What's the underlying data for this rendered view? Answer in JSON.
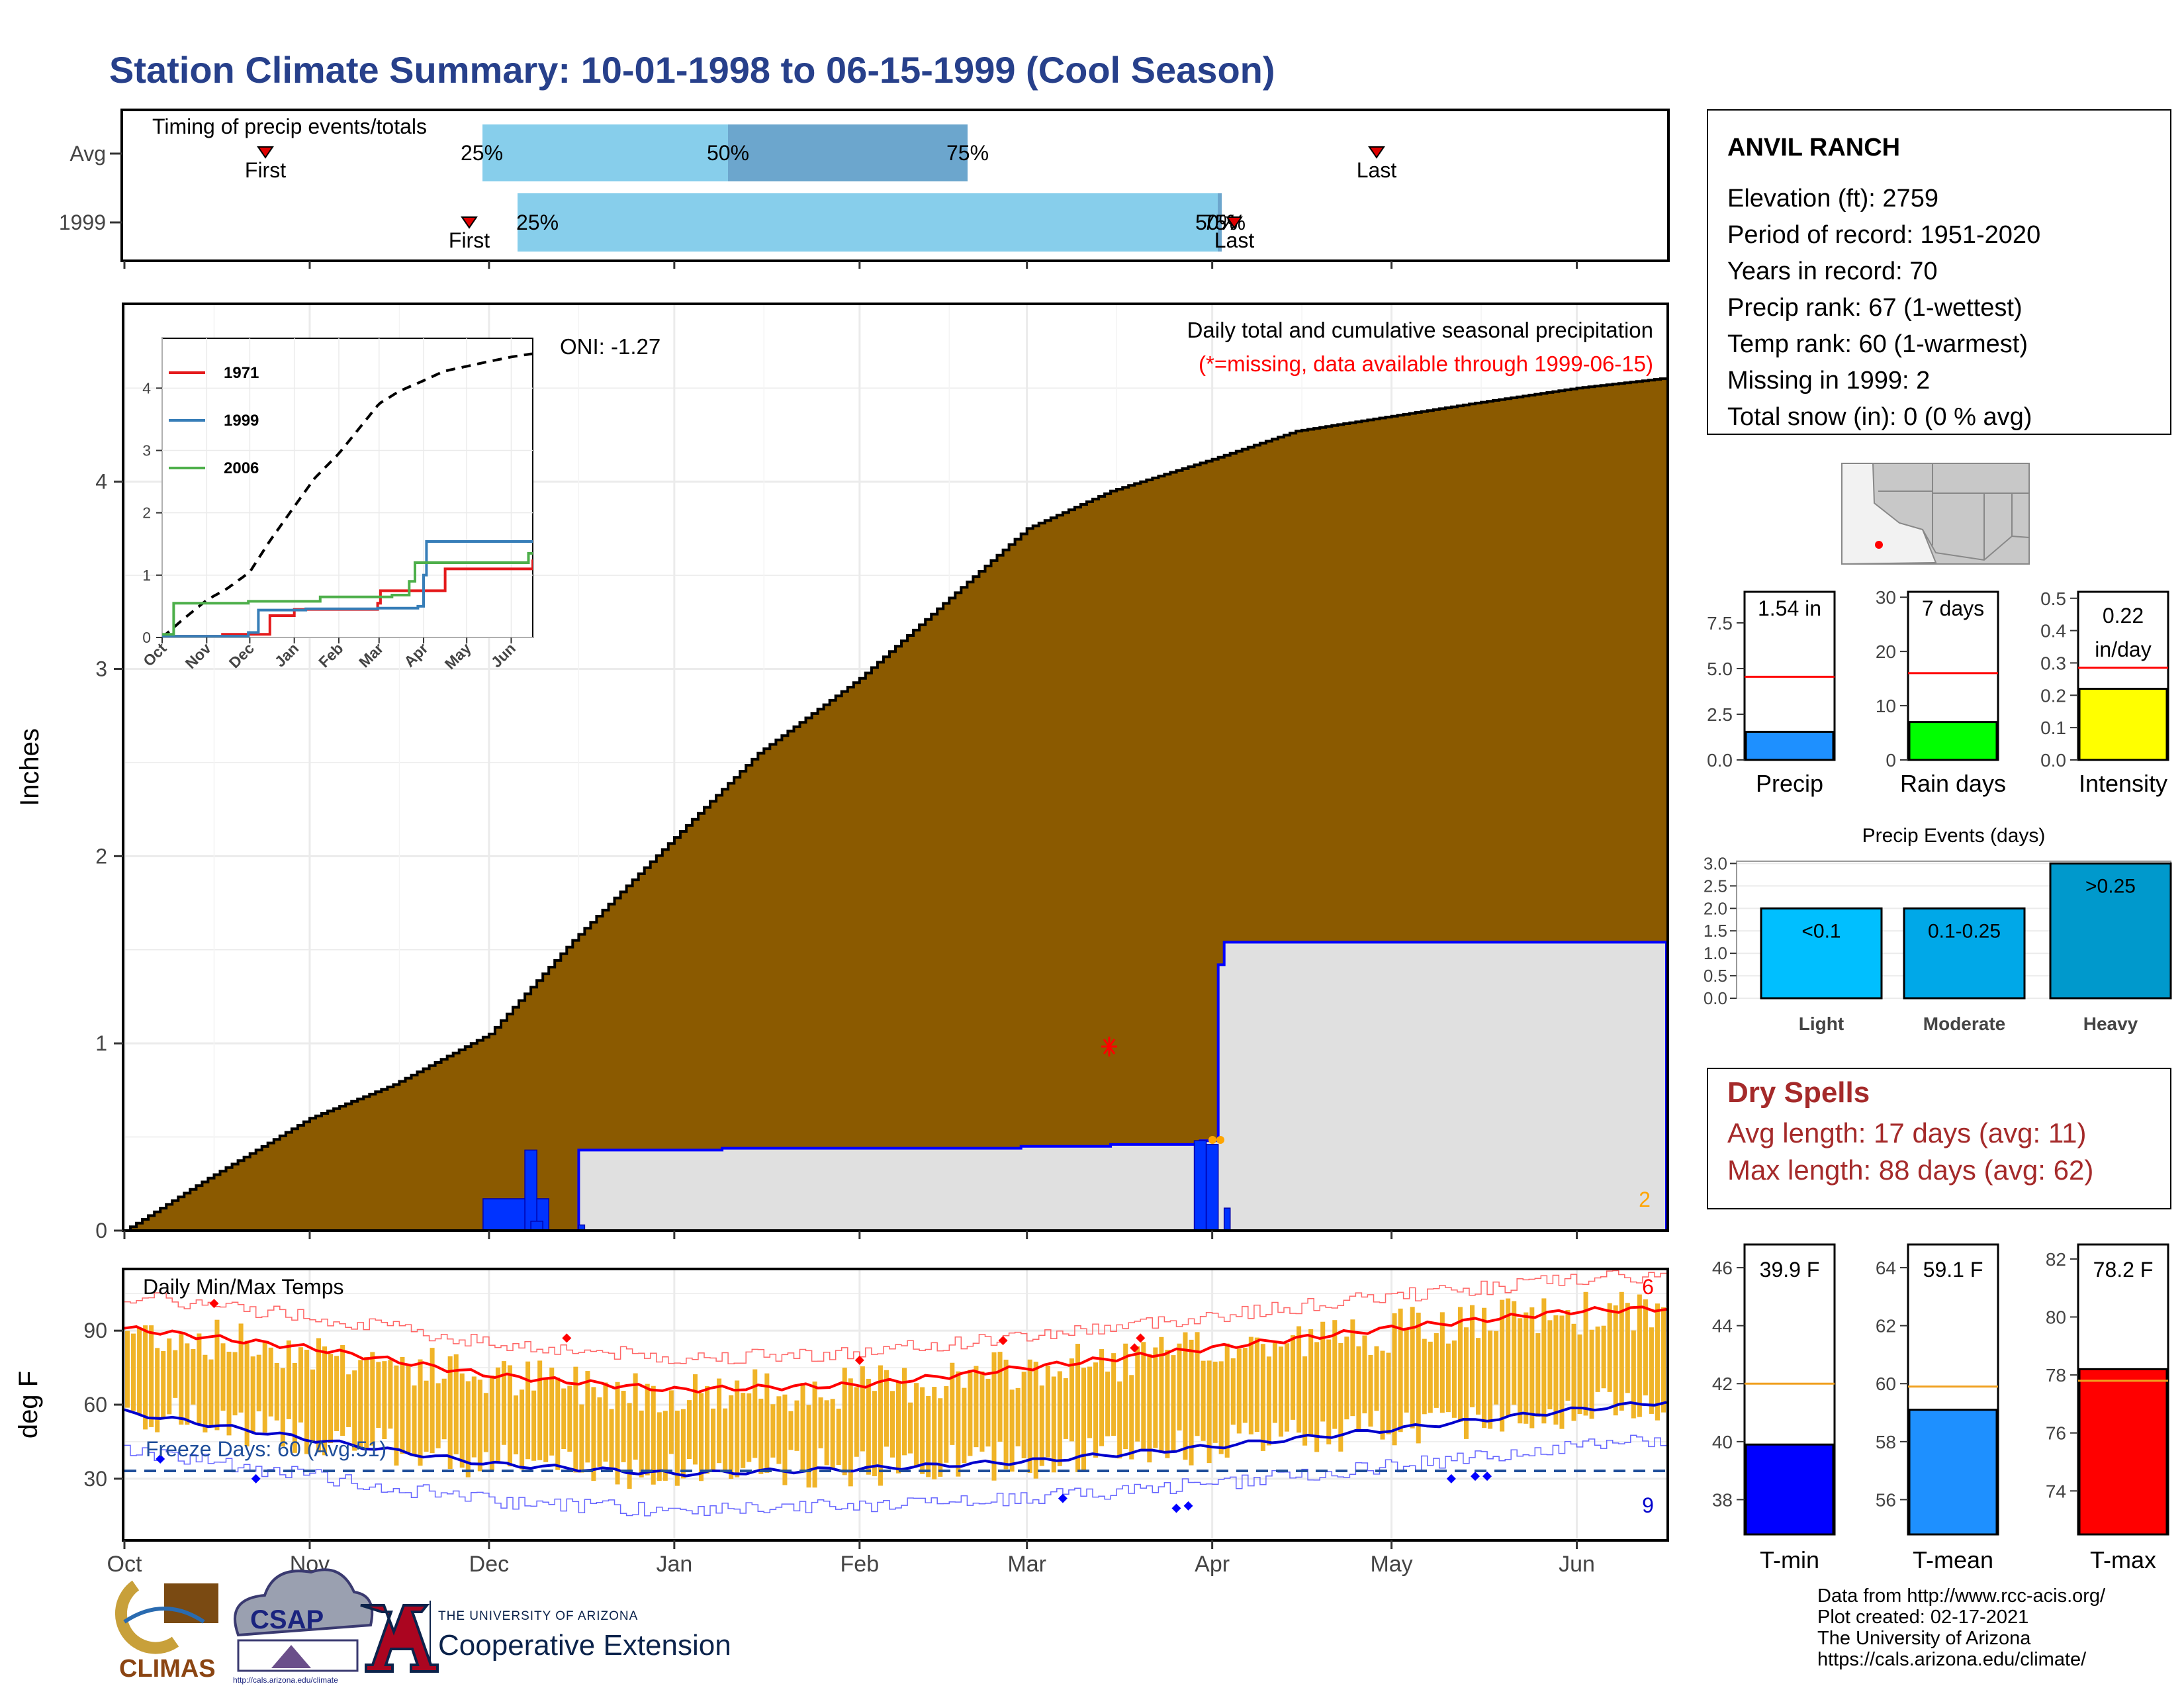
{
  "title": "Station Climate Summary: 10-01-1998 to 06-15-1999 (Cool Season)",
  "timing_panel": {
    "label": "Timing of precip events/totals",
    "rows": [
      "Avg",
      "1999"
    ],
    "avg": {
      "first": "First",
      "last": "Last",
      "p25": "25%",
      "p50": "50%",
      "p75": "75%"
    },
    "yr": {
      "first": "First",
      "last": "Last",
      "p25": "25%",
      "p50": "50%",
      "p75": "75%"
    }
  },
  "main_panel": {
    "ylabel": "Inches",
    "yticks": [
      "0",
      "1",
      "2",
      "3",
      "4"
    ],
    "caption": "Daily total and cumulative seasonal precipitation",
    "missing_note": "(*=missing, data available through 1999-06-15)",
    "oni": "ONI: -1.27",
    "missing_count": "2",
    "colors": {
      "cumulative": "#8b5a00",
      "daily": "#0022ff",
      "avg_area": "#e0e0e0",
      "missing": "#ff0000"
    }
  },
  "inset": {
    "yticks": [
      "0",
      "1",
      "2",
      "3",
      "4"
    ],
    "xticks": [
      "Oct",
      "Nov",
      "Dec",
      "Jan",
      "Feb",
      "Mar",
      "Apr",
      "May",
      "Jun"
    ],
    "legend": [
      {
        "name": "1971",
        "color": "#e41a1c"
      },
      {
        "name": "1999",
        "color": "#377eb8"
      },
      {
        "name": "2006",
        "color": "#4daf4a"
      }
    ]
  },
  "temp_panel": {
    "label": "Daily Min/Max Temps",
    "ylabel": "deg F",
    "yticks": [
      "30",
      "60",
      "90"
    ],
    "freeze": "Freeze Days: 60 (Avg:51)",
    "record_high_count": "6",
    "record_low_count": "9"
  },
  "xaxis": {
    "months": [
      "Oct",
      "Nov",
      "Dec",
      "Jan",
      "Feb",
      "Mar",
      "Apr",
      "May",
      "Jun"
    ]
  },
  "station": {
    "name": "ANVIL RANCH",
    "lines": [
      "Elevation (ft): 2759",
      "Period of record: 1951-2020",
      "Years in record: 70",
      "Precip rank: 67 (1-wettest)",
      "Temp rank: 60 (1-warmest)",
      "Missing in 1999: 2",
      "Total snow (in): 0 (0 % avg)"
    ]
  },
  "bars_precip": [
    {
      "label": "1.54 in",
      "name": "Precip",
      "value": 1.54,
      "avg": 4.55,
      "ymax": 9.2,
      "ticks": [
        "0.0",
        "2.5",
        "5.0",
        "7.5"
      ],
      "tickvals": [
        0,
        2.5,
        5,
        7.5
      ],
      "color": "#1e90ff"
    },
    {
      "label": "7 days",
      "name": "Rain days",
      "value": 7,
      "avg": 16,
      "ymax": 31,
      "ticks": [
        "0",
        "10",
        "20",
        "30"
      ],
      "tickvals": [
        0,
        10,
        20,
        30
      ],
      "color": "#00ff00"
    },
    {
      "label": "0.22",
      "label2": "in/day",
      "name": "Intensity",
      "value": 0.22,
      "avg": 0.285,
      "ymax": 0.52,
      "ticks": [
        "0.0",
        "0.1",
        "0.2",
        "0.3",
        "0.4",
        "0.5"
      ],
      "tickvals": [
        0,
        0.1,
        0.2,
        0.3,
        0.4,
        0.5
      ],
      "color": "#ffff00"
    }
  ],
  "precip_events": {
    "title": "Precip Events (days)",
    "yticks": [
      "0.0",
      "0.5",
      "1.0",
      "1.5",
      "2.0",
      "2.5",
      "3.0"
    ],
    "bars": [
      {
        "category": "Light",
        "label": "<0.1",
        "value": 2,
        "color": "#00bfff"
      },
      {
        "category": "Moderate",
        "label": "0.1-0.25",
        "value": 2,
        "color": "#00a8e8"
      },
      {
        "category": "Heavy",
        "label": ">0.25",
        "value": 3,
        "color": "#0099cc"
      }
    ]
  },
  "dry_spells": {
    "title": "Dry Spells",
    "avg": "Avg length: 17 days (avg: 11)",
    "max": "Max length: 88 days (avg: 62)"
  },
  "bars_temp": [
    {
      "label": "39.9 F",
      "name": "T-min",
      "value": 39.9,
      "avg": 42.0,
      "ymin": 36.8,
      "ymax": 46.8,
      "ticks": [
        "38",
        "40",
        "42",
        "44",
        "46"
      ],
      "tickvals": [
        38,
        40,
        42,
        44,
        46
      ],
      "color": "#0000ff"
    },
    {
      "label": "59.1 F",
      "name": "T-mean",
      "value": 59.1,
      "avg": 59.9,
      "ymin": 54.8,
      "ymax": 64.8,
      "ticks": [
        "56",
        "58",
        "60",
        "62",
        "64"
      ],
      "tickvals": [
        56,
        58,
        60,
        62,
        64
      ],
      "color": "#1e90ff"
    },
    {
      "label": "78.2 F",
      "name": "T-max",
      "value": 78.2,
      "avg": 77.8,
      "ymin": 72.5,
      "ymax": 82.5,
      "ticks": [
        "74",
        "76",
        "78",
        "80",
        "82"
      ],
      "tickvals": [
        74,
        76,
        78,
        80,
        82
      ],
      "color": "#ff0000"
    }
  ],
  "credits": [
    "Data from http://www.rcc-acis.org/",
    "Plot created: 02-17-2021",
    "The University of Arizona",
    "https://cals.arizona.edu/climate/"
  ],
  "logos": {
    "climas": "CLIMAS",
    "csap": "CSAP",
    "csap_url": "http://cals.arizona.edu/climate",
    "ua_small": "THE UNIVERSITY OF ARIZONA",
    "ua_big": "Cooperative Extension"
  },
  "chart_data": [
    {
      "type": "area",
      "title": "Daily total and cumulative seasonal precipitation",
      "ylabel": "Inches",
      "ylim": [
        0,
        4.95
      ],
      "x": [
        "1998-10-01",
        "1998-10-15",
        "1998-11-01",
        "1998-11-15",
        "1998-12-01",
        "1998-12-15",
        "1999-01-01",
        "1999-01-15",
        "1999-02-01",
        "1999-02-15",
        "1999-03-01",
        "1999-03-15",
        "1999-04-01",
        "1999-04-15",
        "1999-05-01",
        "1999-05-15",
        "1999-06-01",
        "1999-06-15"
      ],
      "series": [
        {
          "name": "Average cumulative",
          "values": [
            0.0,
            0.28,
            0.6,
            0.78,
            1.05,
            1.55,
            2.1,
            2.55,
            2.95,
            3.35,
            3.75,
            3.95,
            4.12,
            4.27,
            4.35,
            4.42,
            4.5,
            4.55
          ]
        },
        {
          "name": "1999 cumulative",
          "values": [
            0.0,
            0.0,
            0.0,
            0.0,
            0.0,
            0.43,
            0.44,
            0.44,
            0.44,
            0.44,
            0.45,
            0.46,
            0.48,
            1.54,
            1.54,
            1.54,
            1.54,
            1.54
          ]
        }
      ]
    },
    {
      "type": "line",
      "title": "Daily Min/Max Temps",
      "ylabel": "deg F",
      "ylim": [
        5,
        115
      ],
      "x": [
        "1998-10-01",
        "1998-11-01",
        "1998-12-01",
        "1999-01-01",
        "1999-02-01",
        "1999-03-01",
        "1999-04-01",
        "1999-05-01",
        "1999-06-01",
        "1999-06-15"
      ],
      "series": [
        {
          "name": "Avg max",
          "values": [
            91,
            83,
            72,
            66,
            68,
            75,
            83,
            91,
            98,
            99
          ]
        },
        {
          "name": "Avg min",
          "values": [
            57,
            46,
            36,
            32,
            34,
            37,
            43,
            50,
            58,
            61
          ]
        },
        {
          "name": "Freeze",
          "values": [
            32,
            32,
            32,
            32,
            32,
            32,
            32,
            32,
            32,
            32
          ]
        }
      ]
    }
  ]
}
